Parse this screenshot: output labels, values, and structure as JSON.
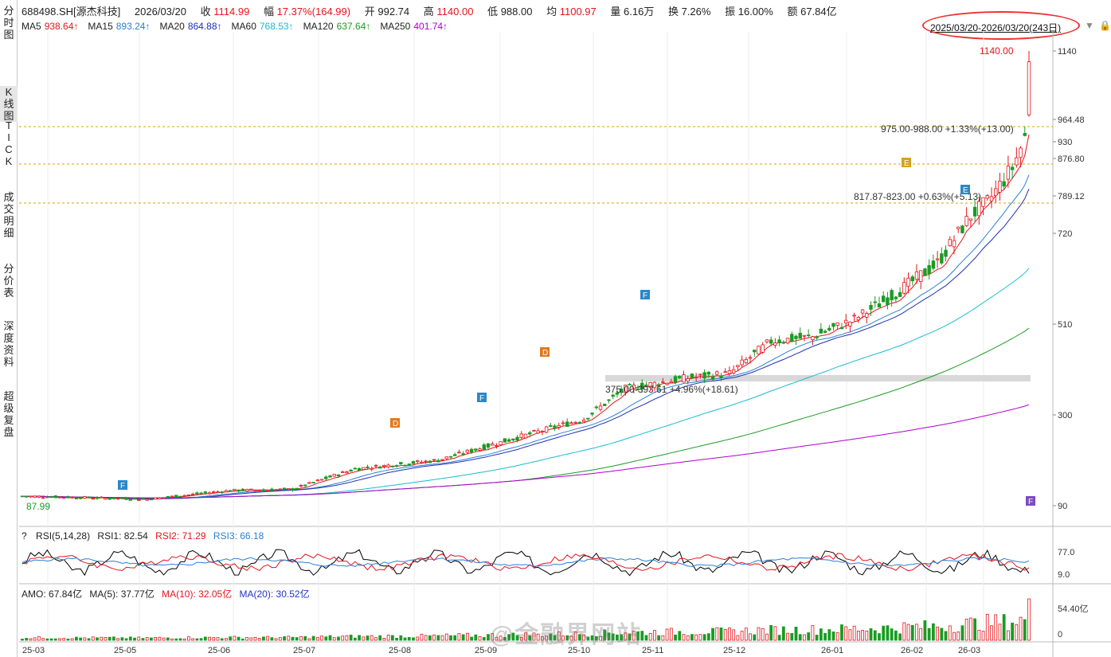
{
  "sidebar": {
    "tabs": [
      {
        "label": "分时图",
        "active": false
      },
      {
        "label": "K线图",
        "active": true
      },
      {
        "label": "TICK",
        "active": false
      },
      {
        "label": "成交明细",
        "active": false
      },
      {
        "label": "分价表",
        "active": false
      },
      {
        "label": "深度资料",
        "active": false
      },
      {
        "label": "超级复盘",
        "active": false
      }
    ]
  },
  "header": {
    "code": "688498.SH[源杰科技]",
    "date": "2026/03/20",
    "close_label": "收",
    "close": "1114.99",
    "amp_label": "幅",
    "amp": "17.37%(164.99)",
    "open_label": "开",
    "open": "992.74",
    "high_label": "高",
    "high": "1140.00",
    "low_label": "低",
    "low": "988.00",
    "avg_label": "均",
    "avg": "1100.97",
    "vol_label": "量",
    "vol": "6.16万",
    "turn_label": "换",
    "turn": "7.26%",
    "swing_label": "振",
    "swing": "16.00%",
    "amount_label": "额",
    "amount": "67.84亿"
  },
  "ma": [
    {
      "name": "MA5",
      "value": "938.64↑",
      "color": "#e4141b"
    },
    {
      "name": "MA15",
      "value": "893.24↑",
      "color": "#2a7fd4"
    },
    {
      "name": "MA20",
      "value": "864.88↑",
      "color": "#1e2fb8"
    },
    {
      "name": "MA60",
      "value": "768.53↑",
      "color": "#19bcd0"
    },
    {
      "name": "MA120",
      "value": "637.64↑",
      "color": "#1a9b22"
    },
    {
      "name": "MA250",
      "value": "401.74↑",
      "color": "#b000d0"
    }
  ],
  "range_label": "2025/03/20-2026/03/20(243日)",
  "price_axis": [
    "1140",
    "964.48",
    "930",
    "876.80",
    "789.12",
    "720",
    "510",
    "300",
    "90"
  ],
  "annotations": {
    "high_mark": "1140.00",
    "low_mark": "87.99",
    "band1": "975.00-988.00  +1.33%(+13.00)",
    "band2": "817.87-823.00  +0.63%(+5.13)",
    "band3": "375.00-393.61  +4.96%(+18.61)"
  },
  "markers": [
    {
      "letter": "F",
      "color": "#2b88c8"
    },
    {
      "letter": "D",
      "color": "#e07b20"
    },
    {
      "letter": "F",
      "color": "#2b88c8"
    },
    {
      "letter": "D",
      "color": "#e07b20"
    },
    {
      "letter": "F",
      "color": "#2b88c8"
    },
    {
      "letter": "E",
      "color": "#d4a21c"
    },
    {
      "letter": "E",
      "color": "#2b88c8"
    },
    {
      "letter": "F",
      "color": "#7b4cc0"
    }
  ],
  "rsi": {
    "title": "RSI(5,14,28)",
    "rsi1_label": "RSI1:",
    "rsi1": "82.54",
    "rsi2_label": "RSI2:",
    "rsi2": "71.29",
    "rsi3_label": "RSI3:",
    "rsi3": "66.18",
    "axis": [
      "77.0",
      "9.0"
    ]
  },
  "amo": {
    "title": "AMO:",
    "value": "67.84亿",
    "ma5_label": "MA(5):",
    "ma5": "37.77亿",
    "ma10_label": "MA(10):",
    "ma10": "32.05亿",
    "ma20_label": "MA(20):",
    "ma20": "30.52亿",
    "axis": [
      "54.40亿",
      "0"
    ]
  },
  "date_axis": [
    "25-03",
    "25-05",
    "25-06",
    "25-07",
    "25-08",
    "25-09",
    "25-10",
    "25-11",
    "25-12",
    "26-01",
    "26-02",
    "26-03"
  ],
  "watermark": "@金融界网站"
}
